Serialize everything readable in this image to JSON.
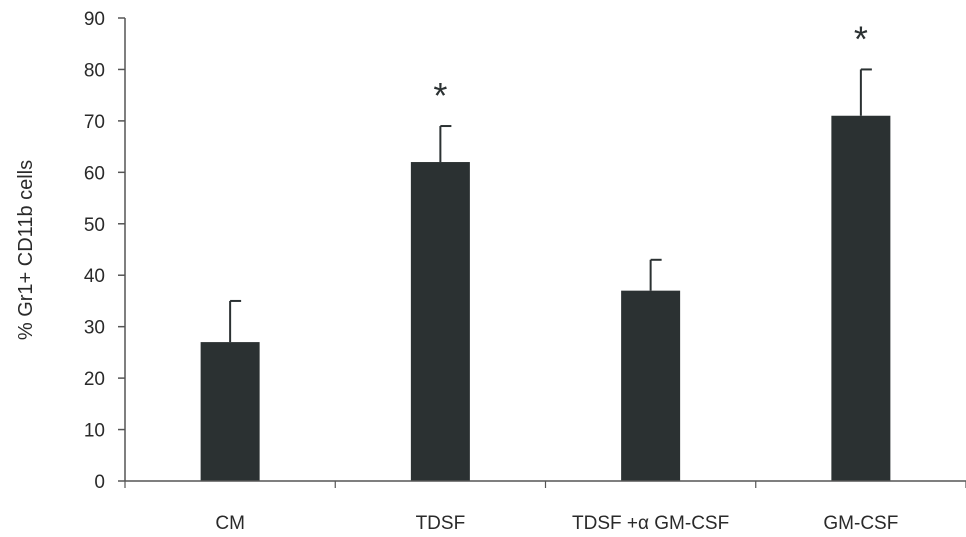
{
  "chart_data": {
    "type": "bar",
    "title": "",
    "xlabel": "",
    "ylabel": "% Gr1+ CD11b cells",
    "ylim": [
      0,
      90
    ],
    "yticks": [
      0,
      10,
      20,
      30,
      40,
      50,
      60,
      70,
      80,
      90
    ],
    "grid": false,
    "legend": "none",
    "categories": [
      "CM",
      "TDSF",
      "TDSF +α GM-CSF",
      "GM-CSF"
    ],
    "values": [
      27,
      62,
      37,
      71
    ],
    "error_upper": [
      35,
      69,
      43,
      80
    ],
    "annotations": [
      "",
      "*",
      "",
      "*"
    ],
    "colors": {
      "bar": "#2b3132",
      "axis": "#555555",
      "text": "#2a2a2a"
    }
  }
}
